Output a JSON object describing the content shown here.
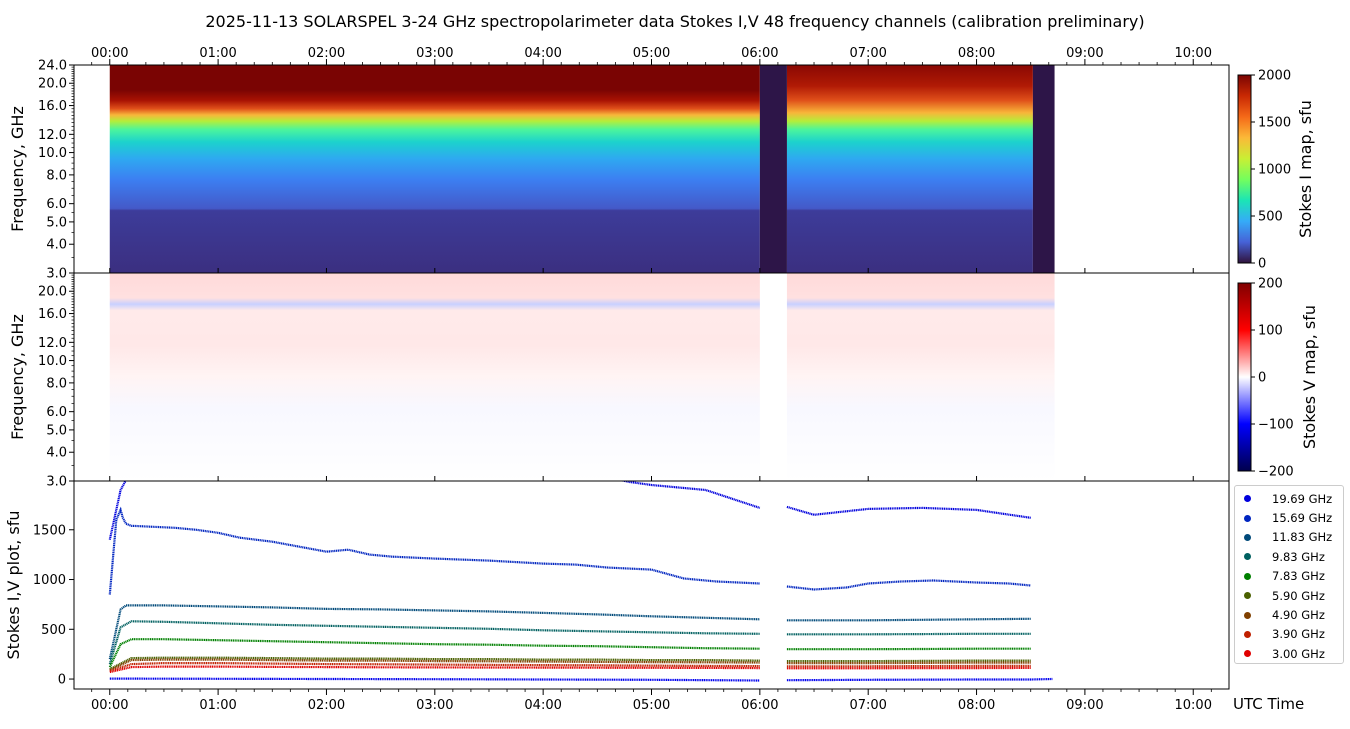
{
  "title": "2025-11-13   SOLARSPEL  3-24 GHz spectropolarimeter data   Stokes I,V   48 frequency channels   (calibration preliminary)",
  "time_axis": {
    "label": "UTC Time",
    "ticks": [
      "00:00",
      "01:00",
      "02:00",
      "03:00",
      "04:00",
      "05:00",
      "06:00",
      "07:00",
      "08:00",
      "09:00",
      "10:00"
    ],
    "range_hours": [
      -0.33,
      10.33
    ]
  },
  "colors": {
    "gap_band": "#2d1548",
    "stokes_i_colormap": [
      "#30123b",
      "#4662d7",
      "#35abf8",
      "#1be5b5",
      "#74fe5d",
      "#c9ef34",
      "#fbb938",
      "#f56918",
      "#c92903",
      "#7a0403"
    ],
    "stokes_v_colormap": [
      "#00004c",
      "#0000ff",
      "#ffffff",
      "#ff0000",
      "#800000"
    ]
  },
  "chart_data": [
    {
      "type": "heatmap",
      "name": "stokes-i-map",
      "ylabel": "Frequency, GHz",
      "yticks": [
        "3.0",
        "4.0",
        "5.0",
        "6.0",
        "8.0",
        "10.0",
        "12.0",
        "16.0",
        "20.0",
        "24.0"
      ],
      "ylim": [
        3.0,
        24.0
      ],
      "yscale": "log",
      "data_coverage_hours": [
        0.0,
        8.7
      ],
      "gaps_hours": [
        [
          6.0,
          6.25
        ],
        [
          8.52,
          8.72
        ]
      ],
      "colorbar": {
        "label": "Stokes I map, sfu",
        "range": [
          0,
          2000
        ],
        "ticks": [
          "2000",
          "1500",
          "1000",
          "500",
          "0"
        ]
      }
    },
    {
      "type": "heatmap",
      "name": "stokes-v-map",
      "ylabel": "Frequency, GHz",
      "yticks": [
        "3.0",
        "4.0",
        "5.0",
        "6.0",
        "8.0",
        "10.0",
        "12.0",
        "16.0",
        "20.0"
      ],
      "ylim": [
        3.0,
        24.0
      ],
      "yscale": "log",
      "colorbar": {
        "label": "Stokes V map, sfu",
        "range": [
          -200,
          200
        ],
        "ticks": [
          "200",
          "100",
          "0",
          "−100",
          "−200"
        ]
      }
    },
    {
      "type": "scatter",
      "name": "stokes-iv-plot",
      "ylabel": "Stokes I,V plot, sfu",
      "yticks": [
        "0",
        "500",
        "1000",
        "1500"
      ],
      "ylim": [
        -100,
        1990
      ],
      "gap_hours": [
        6.0,
        6.25
      ],
      "series": [
        {
          "name": "19.69 GHz",
          "color": "#0000dd",
          "x": [
            0.0,
            0.1,
            0.2,
            0.3,
            0.5,
            0.8,
            1.0,
            1.5,
            2.0,
            2.5,
            3.0,
            3.5,
            4.0,
            4.5,
            4.8,
            5.0,
            5.5,
            6.0,
            6.25,
            6.5,
            7.0,
            7.5,
            8.0,
            8.5
          ],
          "y": [
            1400,
            1900,
            2100,
            2100,
            2100,
            2100,
            2100,
            2100,
            2100,
            2100,
            2100,
            2100,
            2100,
            2050,
            1980,
            1950,
            1900,
            1720,
            1730,
            1650,
            1710,
            1720,
            1700,
            1620
          ]
        },
        {
          "name": "15.69 GHz",
          "color": "#0025c0",
          "x": [
            0.0,
            0.06,
            0.1,
            0.12,
            0.15,
            0.2,
            0.4,
            0.6,
            0.8,
            1.0,
            1.2,
            1.5,
            2.0,
            2.2,
            2.4,
            2.6,
            3.0,
            3.5,
            4.0,
            4.3,
            4.6,
            5.0,
            5.3,
            5.6,
            6.0,
            6.25,
            6.5,
            6.8,
            7.0,
            7.3,
            7.6,
            8.0,
            8.3,
            8.5
          ],
          "y": [
            850,
            1600,
            1700,
            1620,
            1560,
            1540,
            1530,
            1520,
            1500,
            1470,
            1420,
            1380,
            1280,
            1300,
            1250,
            1230,
            1210,
            1190,
            1160,
            1150,
            1120,
            1100,
            1010,
            980,
            960,
            930,
            900,
            920,
            960,
            980,
            990,
            970,
            960,
            940
          ]
        },
        {
          "name": "11.83 GHz",
          "color": "#004a7a",
          "x": [
            0.0,
            0.1,
            0.15,
            0.5,
            1.0,
            1.5,
            2.0,
            2.5,
            3.0,
            3.5,
            4.0,
            4.5,
            5.0,
            5.5,
            6.0,
            6.25,
            7.0,
            7.5,
            8.0,
            8.5
          ],
          "y": [
            200,
            700,
            740,
            740,
            730,
            720,
            705,
            700,
            690,
            680,
            665,
            650,
            630,
            615,
            600,
            590,
            590,
            595,
            600,
            605
          ]
        },
        {
          "name": "9.83 GHz",
          "color": "#006060",
          "x": [
            0.0,
            0.1,
            0.2,
            0.5,
            1.0,
            1.5,
            2.0,
            2.5,
            3.0,
            3.5,
            4.0,
            4.5,
            5.0,
            5.5,
            6.0,
            6.25,
            7.0,
            7.5,
            8.0,
            8.5
          ],
          "y": [
            150,
            520,
            580,
            575,
            560,
            545,
            535,
            525,
            515,
            505,
            490,
            480,
            470,
            460,
            455,
            450,
            450,
            452,
            455,
            455
          ]
        },
        {
          "name": "7.83 GHz",
          "color": "#008000",
          "x": [
            0.0,
            0.1,
            0.2,
            0.5,
            1.0,
            1.5,
            2.0,
            2.5,
            3.0,
            3.5,
            4.0,
            4.5,
            5.0,
            5.5,
            6.0,
            6.25,
            7.0,
            7.5,
            8.0,
            8.5
          ],
          "y": [
            120,
            350,
            400,
            400,
            390,
            380,
            370,
            360,
            350,
            345,
            335,
            330,
            320,
            310,
            305,
            300,
            300,
            302,
            305,
            305
          ]
        },
        {
          "name": "5.90 GHz",
          "color": "#4a6000",
          "x": [
            0.0,
            0.2,
            0.5,
            1.0,
            1.5,
            2.0,
            2.5,
            3.0,
            3.5,
            4.0,
            4.5,
            5.0,
            5.5,
            6.0,
            6.25,
            7.0,
            7.5,
            8.0,
            8.5
          ],
          "y": [
            100,
            210,
            215,
            215,
            210,
            205,
            205,
            200,
            200,
            195,
            195,
            190,
            190,
            185,
            180,
            180,
            182,
            185,
            185
          ]
        },
        {
          "name": "4.90 GHz",
          "color": "#804000",
          "x": [
            0.0,
            0.2,
            0.5,
            1.0,
            1.5,
            2.0,
            2.5,
            3.0,
            3.5,
            4.0,
            4.5,
            5.0,
            5.5,
            6.0,
            6.25,
            7.0,
            7.5,
            8.0,
            8.5
          ],
          "y": [
            90,
            190,
            195,
            195,
            190,
            185,
            185,
            180,
            178,
            175,
            172,
            170,
            168,
            165,
            160,
            160,
            162,
            165,
            165
          ]
        },
        {
          "name": "3.90 GHz",
          "color": "#c02000",
          "x": [
            0.0,
            0.2,
            0.5,
            1.0,
            1.5,
            2.0,
            2.5,
            3.0,
            3.5,
            4.0,
            4.5,
            5.0,
            5.5,
            6.0,
            6.25,
            7.0,
            7.5,
            8.0,
            8.5
          ],
          "y": [
            80,
            150,
            160,
            160,
            155,
            150,
            148,
            145,
            142,
            140,
            138,
            135,
            132,
            130,
            128,
            128,
            130,
            132,
            132
          ]
        },
        {
          "name": "3.00 GHz",
          "color": "#e00000",
          "x": [
            0.0,
            0.2,
            0.5,
            1.0,
            1.5,
            2.0,
            2.5,
            3.0,
            3.5,
            4.0,
            4.5,
            5.0,
            5.5,
            6.0,
            6.25,
            7.0,
            7.5,
            8.0,
            8.5
          ],
          "y": [
            70,
            120,
            125,
            125,
            122,
            120,
            118,
            117,
            116,
            115,
            114,
            113,
            112,
            110,
            108,
            108,
            110,
            110,
            112
          ]
        },
        {
          "name": "",
          "color": "#0000ee",
          "x": [
            0.0,
            1.0,
            2.0,
            3.0,
            4.0,
            5.0,
            6.0,
            6.25,
            7.0,
            8.0,
            8.5,
            8.7
          ],
          "y": [
            5,
            2,
            0,
            -2,
            -5,
            -8,
            -15,
            -12,
            -8,
            -5,
            -5,
            0
          ]
        }
      ]
    }
  ]
}
